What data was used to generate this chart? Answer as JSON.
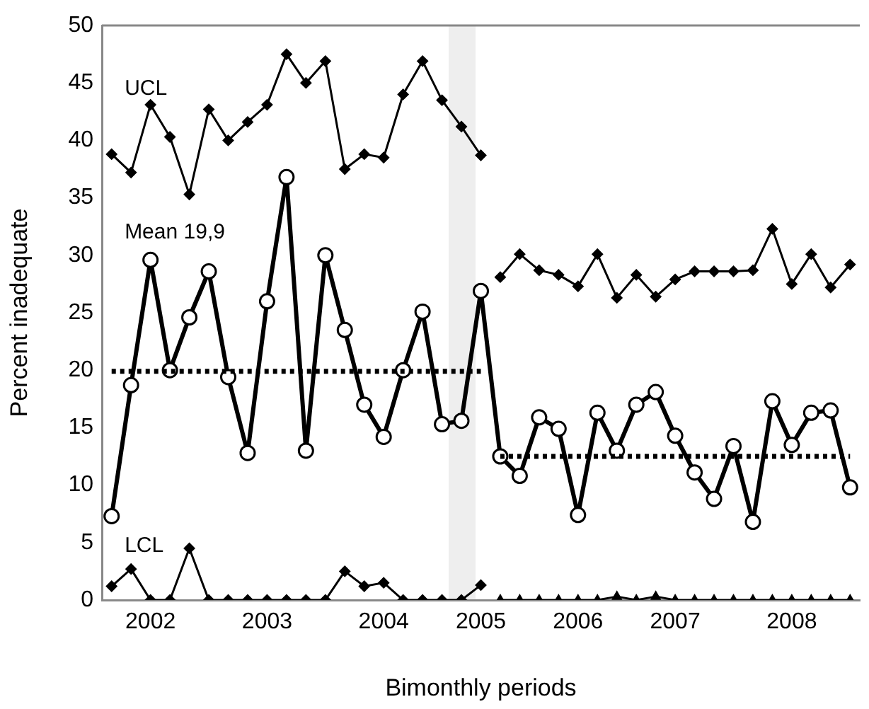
{
  "chart_data": {
    "type": "line",
    "xlabel": "Bimonthly periods",
    "ylabel": "Percent inadequate",
    "categories": [
      null,
      null,
      "2002",
      null,
      null,
      null,
      null,
      null,
      "2003",
      null,
      null,
      null,
      null,
      null,
      "2004",
      null,
      null,
      null,
      null,
      "2005",
      null,
      null,
      null,
      null,
      "2006",
      null,
      null,
      null,
      null,
      "2007",
      null,
      null,
      null,
      null,
      null,
      "2008",
      null,
      null,
      null
    ],
    "ylim": [
      0,
      50
    ],
    "yticks": [
      0,
      5,
      10,
      15,
      20,
      25,
      30,
      35,
      40,
      45,
      50
    ],
    "grid": false,
    "legend": false,
    "line_style": "solid",
    "series": [
      {
        "color": "#000000",
        "marker": "diamond",
        "values": [
          38.8,
          37.2,
          43.1,
          40.3,
          35.3,
          42.7,
          40.0,
          41.6,
          43.1,
          47.5,
          45.0,
          46.9,
          37.5,
          38.8,
          38.5,
          44.0,
          46.9,
          43.5,
          41.2,
          38.7,
          null,
          null,
          null,
          null,
          null,
          null,
          null,
          null,
          null,
          null,
          null,
          null,
          null,
          null,
          null,
          null,
          null,
          null,
          null
        ]
      },
      {
        "color": "#000000",
        "marker": "diamond",
        "values": [
          null,
          null,
          null,
          null,
          null,
          null,
          null,
          null,
          null,
          null,
          null,
          null,
          null,
          null,
          null,
          null,
          null,
          null,
          null,
          null,
          28.1,
          30.1,
          28.7,
          28.3,
          27.3,
          30.1,
          26.3,
          28.3,
          26.4,
          27.9,
          28.6,
          28.6,
          28.6,
          28.7,
          32.3,
          27.5,
          30.1,
          27.2,
          29.2
        ]
      },
      {
        "color": "#000000",
        "marker": "diamond",
        "values": [
          1.2,
          2.7,
          0,
          0,
          4.5,
          0,
          0,
          0,
          0,
          0,
          0,
          0,
          2.5,
          1.2,
          1.5,
          0,
          0,
          0,
          0,
          1.3,
          null,
          null,
          null,
          null,
          null,
          null,
          null,
          null,
          null,
          null,
          null,
          null,
          null,
          null,
          null,
          null,
          null,
          null,
          null
        ]
      },
      {
        "color": "#000000",
        "marker": "triangle",
        "values": [
          null,
          null,
          null,
          null,
          null,
          null,
          null,
          null,
          null,
          null,
          null,
          null,
          null,
          null,
          null,
          null,
          null,
          null,
          null,
          null,
          0,
          0,
          0,
          0,
          0,
          0,
          0.3,
          0,
          0.3,
          0,
          0,
          0,
          0,
          0,
          0,
          0,
          0,
          0,
          0
        ]
      },
      {
        "color": "#000000",
        "marker": "none",
        "line_style": "dotted",
        "values": [
          19.9,
          19.9,
          19.9,
          19.9,
          19.9,
          19.9,
          19.9,
          19.9,
          19.9,
          19.9,
          19.9,
          19.9,
          19.9,
          19.9,
          19.9,
          19.9,
          19.9,
          19.9,
          19.9,
          19.9,
          null,
          null,
          null,
          null,
          null,
          null,
          null,
          null,
          null,
          null,
          null,
          null,
          null,
          null,
          null,
          null,
          null,
          null,
          null
        ]
      },
      {
        "color": "#000000",
        "marker": "none",
        "line_style": "dotted",
        "values": [
          null,
          null,
          null,
          null,
          null,
          null,
          null,
          null,
          null,
          null,
          null,
          null,
          null,
          null,
          null,
          null,
          null,
          null,
          null,
          null,
          12.5,
          12.5,
          12.5,
          12.5,
          12.5,
          12.5,
          12.5,
          12.5,
          12.5,
          12.5,
          12.5,
          12.5,
          12.5,
          12.5,
          12.5,
          12.5,
          12.5,
          12.5,
          12.5
        ]
      },
      {
        "color": "#000000",
        "marker": "circle",
        "values": [
          7.3,
          18.7,
          29.6,
          20.0,
          24.6,
          28.6,
          19.4,
          12.8,
          26.0,
          36.8,
          13.0,
          30.0,
          23.5,
          17.0,
          14.2,
          20.0,
          25.1,
          15.3,
          15.6,
          26.9,
          12.5,
          10.8,
          15.9,
          14.9,
          7.4,
          16.3,
          13.0,
          17.0,
          18.1,
          14.3,
          11.1,
          8.8,
          13.4,
          6.8,
          17.3,
          13.5,
          16.3,
          16.5,
          9.8
        ]
      }
    ],
    "annotations": [
      "UCL",
      "Mean 19,9",
      "LCL"
    ]
  }
}
